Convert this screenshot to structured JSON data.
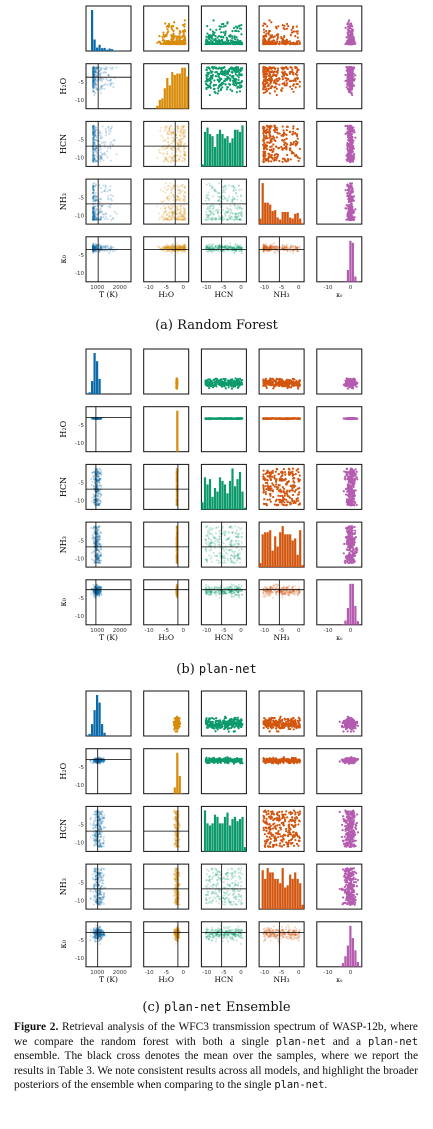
{
  "variables": [
    "T (K)",
    "H₂O",
    "HCN",
    "NH₃",
    "κ₀"
  ],
  "y_axis_labels": [
    "H₂O",
    "HCN",
    "NH₃",
    "κ₀"
  ],
  "y_ticks": [
    "-5",
    "-10"
  ],
  "x_ticks": {
    "T": [
      "1000",
      "2000"
    ],
    "log": [
      "-10",
      "-5",
      "0"
    ],
    "kappa": [
      "-10",
      "0"
    ]
  },
  "colors": {
    "T": "#0b6aa8",
    "H2O": "#d98c0a",
    "HCN": "#0c9a6c",
    "NH3": "#d2560f",
    "kappa": "#b55cb0",
    "crosshair": "#000000"
  },
  "subcaptions": {
    "rf": "(a) Random Forest",
    "plannet_prefix": "(b) ",
    "plannet_name": "plan-net",
    "ensemble_prefix": "(c) ",
    "ensemble_name": "plan-net",
    "ensemble_suffix": " Ensemble"
  },
  "caption": {
    "label": "Figure 2.",
    "part1": " Retrieval analysis of the WFC3 transmission spectrum of WASP-12b, where we compare the random forest with both a single ",
    "code1": "plan-net",
    "part2": " and a ",
    "code2": "plan-net",
    "part3": " ensemble. The black cross denotes the mean over the samples, where we report the results in Table ",
    "table_ref": "3",
    "part4": ". We note consistent results across all models, and highlight the broader posteriors of the ensemble when comparing to the single ",
    "code3": "plan-net",
    "part5": "."
  },
  "chart_data": [
    {
      "type": "scatter",
      "name": "(a) Random Forest",
      "variables": [
        "T (K)",
        "H2O",
        "HCN",
        "NH3",
        "kappa0"
      ],
      "xlim": {
        "T": [
          400,
          2500
        ],
        "log": [
          -12,
          0
        ],
        "kappa": [
          -12,
          0
        ]
      },
      "means": {
        "T": 1000,
        "H2O": -3,
        "HCN": -7,
        "NH3": -7,
        "kappa0": -2
      },
      "marginal_shape": {
        "T": "sharp peak ~800 K with long tail",
        "H2O": "skewed to high values near -2",
        "HCN": "broad",
        "NH3": "decreasing",
        "kappa0": "narrow peak ~-2"
      }
    },
    {
      "type": "scatter",
      "name": "(b) plan-net",
      "variables": [
        "T (K)",
        "H2O",
        "HCN",
        "NH3",
        "kappa0"
      ],
      "xlim": {
        "T": [
          400,
          2500
        ],
        "log": [
          -12,
          0
        ],
        "kappa": [
          -12,
          0
        ]
      },
      "means": {
        "T": 900,
        "H2O": -3,
        "HCN": -7,
        "NH3": -7,
        "kappa0": -2
      },
      "marginal_shape": {
        "T": "peak ~900 K",
        "H2O": "very narrow spike at -3",
        "HCN": "flat",
        "NH3": "flat",
        "kappa0": "narrow peak ~-2"
      }
    },
    {
      "type": "scatter",
      "name": "(c) plan-net Ensemble",
      "variables": [
        "T (K)",
        "H2O",
        "HCN",
        "NH3",
        "kappa0"
      ],
      "xlim": {
        "T": [
          400,
          2500
        ],
        "log": [
          -12,
          0
        ],
        "kappa": [
          -12,
          0
        ]
      },
      "means": {
        "T": 950,
        "H2O": -3,
        "HCN": -7,
        "NH3": -7,
        "kappa0": -2
      },
      "marginal_shape": {
        "T": "peak ~950 K, broader",
        "H2O": "narrow peak ~-3",
        "HCN": "flat",
        "NH3": "flat",
        "kappa0": "peak ~-2"
      }
    }
  ]
}
